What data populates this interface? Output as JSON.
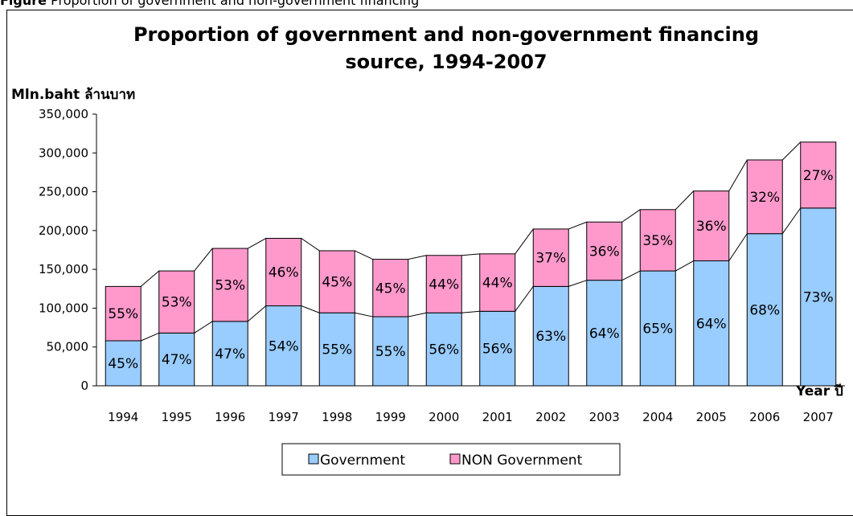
{
  "top_caption": {
    "label": "Figure",
    "text": "Proportion of government and non-government financing"
  },
  "chart_data": {
    "type": "bar",
    "stacked": true,
    "title": "Proportion of government and non-government financing source, 1994-2007",
    "title_lines": [
      "Proportion of government and non-government financing",
      "source, 1994-2007"
    ],
    "ylabel": "Mln.baht ล้านบาท",
    "xlabel": "Year ปี",
    "ylim": [
      0,
      350000
    ],
    "yticks": [
      0,
      50000,
      100000,
      150000,
      200000,
      250000,
      300000,
      350000
    ],
    "ytick_labels": [
      "0",
      "50,000",
      "100,000",
      "150,000",
      "200,000",
      "250,000",
      "300,000",
      "350,000"
    ],
    "categories": [
      "1994",
      "1995",
      "1996",
      "1997",
      "1998",
      "1999",
      "2000",
      "2001",
      "2002",
      "2003",
      "2004",
      "2005",
      "2006",
      "2007"
    ],
    "series": [
      {
        "name": "Government",
        "color": "#99ccff",
        "values": [
          58000,
          68000,
          83000,
          103000,
          94000,
          89000,
          94000,
          96000,
          128000,
          136000,
          148000,
          161000,
          196000,
          229000
        ],
        "labels": [
          "45%",
          "47%",
          "47%",
          "54%",
          "55%",
          "55%",
          "56%",
          "56%",
          "63%",
          "64%",
          "65%",
          "64%",
          "68%",
          "73%"
        ]
      },
      {
        "name": "NON Government",
        "color": "#ff99cc",
        "values": [
          70000,
          80000,
          94000,
          87000,
          80000,
          74000,
          74000,
          74000,
          74000,
          75000,
          79000,
          90000,
          95000,
          85000
        ],
        "labels": [
          "55%",
          "53%",
          "53%",
          "46%",
          "45%",
          "45%",
          "44%",
          "44%",
          "37%",
          "36%",
          "35%",
          "36%",
          "32%",
          "27%"
        ]
      }
    ],
    "grid": false,
    "series_lines": true,
    "legend_position": "bottom"
  }
}
